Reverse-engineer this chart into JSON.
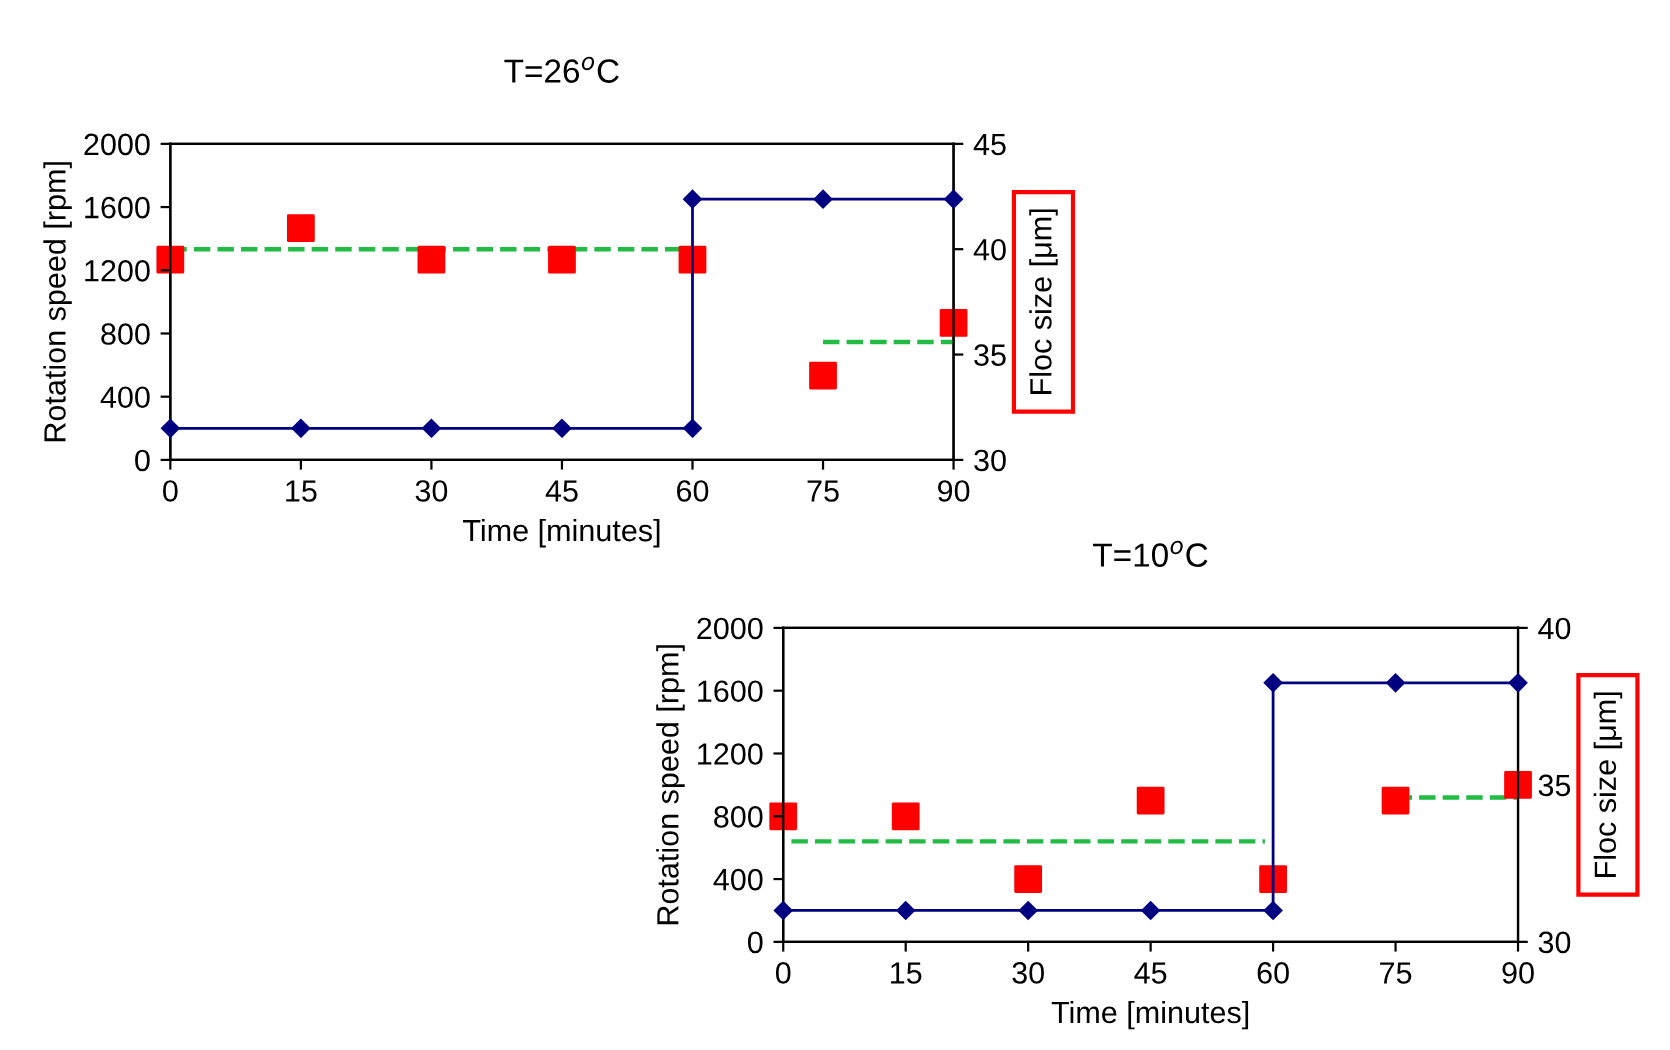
{
  "chart_data": [
    {
      "type": "line",
      "title": "T=26$^{o}$C",
      "xlabel": "Time [minutes]",
      "ylabel": "Rotation speed [rpm]",
      "y2label": "Floc size [μm]",
      "xlim": [
        0,
        90
      ],
      "xticks": [
        0,
        15,
        30,
        45,
        60,
        75,
        90
      ],
      "ylim": [
        0,
        2000
      ],
      "yticks": [
        0,
        400,
        800,
        1200,
        1600,
        2000
      ],
      "y2lim": [
        30,
        45
      ],
      "y2ticks": [
        30,
        35,
        40,
        45
      ],
      "grid": false,
      "series": [
        {
          "color": "#000080",
          "marker": "diamond",
          "line_style": "solid",
          "x": [
            0,
            15,
            30,
            45,
            60,
            60,
            75,
            90
          ],
          "values": [
            200,
            200,
            200,
            200,
            200,
            1650,
            1650,
            1650
          ]
        },
        {
          "type": "scatter",
          "axis": "y2",
          "color": "#ff0000",
          "marker": "square",
          "x": [
            0,
            15,
            30,
            45,
            60,
            75,
            90
          ],
          "values": [
            39.5,
            41.0,
            39.5,
            39.5,
            39.5,
            34.0,
            36.5
          ]
        },
        {
          "axis": "y2",
          "color": "#22bb44",
          "line_style": "dashed",
          "x": [
            0,
            59
          ],
          "values": [
            40.0,
            40.0
          ]
        },
        {
          "axis": "y2",
          "color": "#22bb44",
          "line_style": "dashed",
          "x": [
            75,
            90
          ],
          "values": [
            35.6,
            35.6
          ]
        }
      ]
    },
    {
      "type": "line",
      "title": "T=10$^{o}$C",
      "xlabel": "Time [minutes]",
      "ylabel": "Rotation speed [rpm]",
      "y2label": "Floc size [μm]",
      "xlim": [
        0,
        90
      ],
      "xticks": [
        0,
        15,
        30,
        45,
        60,
        75,
        90
      ],
      "ylim": [
        0,
        2000
      ],
      "yticks": [
        0,
        400,
        800,
        1200,
        1600,
        2000
      ],
      "y2lim": [
        30,
        40
      ],
      "y2ticks": [
        30,
        35,
        40
      ],
      "grid": false,
      "series": [
        {
          "color": "#000080",
          "marker": "diamond",
          "line_style": "solid",
          "x": [
            0,
            15,
            30,
            45,
            60,
            60,
            75,
            90
          ],
          "values": [
            200,
            200,
            200,
            200,
            200,
            1650,
            1650,
            1650
          ]
        },
        {
          "type": "scatter",
          "axis": "y2",
          "color": "#ff0000",
          "marker": "square",
          "x": [
            0,
            15,
            30,
            45,
            60,
            75,
            90
          ],
          "values": [
            34.0,
            34.0,
            32.0,
            34.5,
            32.0,
            34.5,
            35.0
          ]
        },
        {
          "axis": "y2",
          "color": "#22bb44",
          "line_style": "dashed",
          "x": [
            1,
            59
          ],
          "values": [
            33.2,
            33.2
          ]
        },
        {
          "axis": "y2",
          "color": "#22bb44",
          "line_style": "dashed",
          "x": [
            75,
            90
          ],
          "values": [
            34.6,
            34.6
          ]
        }
      ]
    }
  ]
}
